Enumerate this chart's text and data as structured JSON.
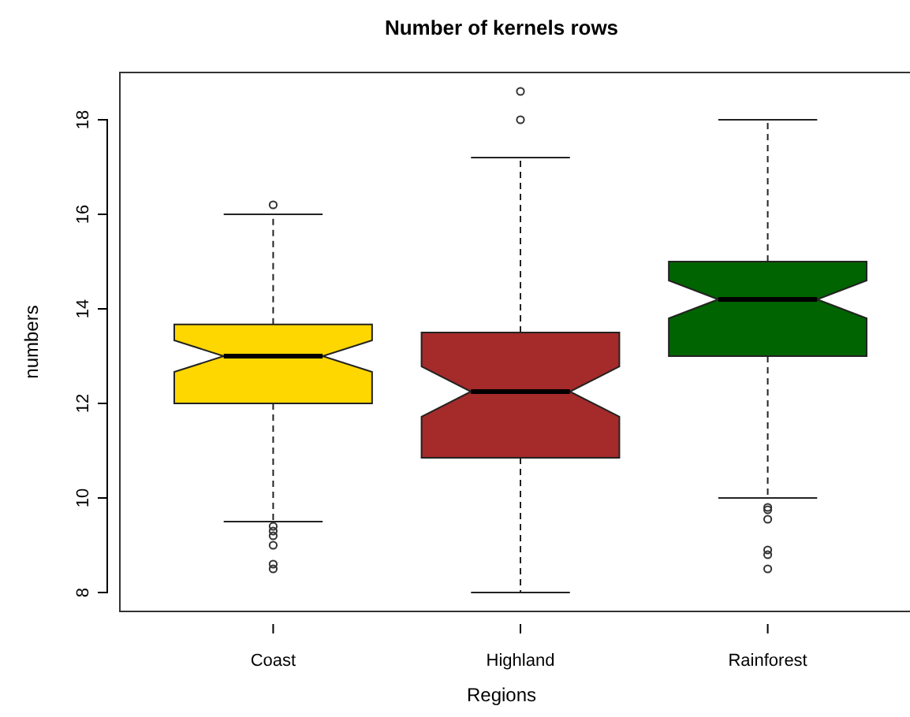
{
  "chart_data": {
    "type": "box",
    "title": "Number of kernels rows",
    "xlabel": "Regions",
    "ylabel": "numbers",
    "categories": [
      "Coast",
      "Highland",
      "Rainforest"
    ],
    "colors": [
      "#ffd700",
      "#a52a2a",
      "#006400"
    ],
    "boxes": [
      {
        "low": 9.5,
        "q1": 12,
        "median": 13,
        "q3": 13.67,
        "high": 16,
        "outliers": [
          16.2,
          9.4,
          9.3,
          9.2,
          9.0,
          8.6,
          8.5
        ]
      },
      {
        "low": 8,
        "q1": 10.85,
        "median": 12.25,
        "q3": 13.5,
        "high": 17.2,
        "outliers": [
          18.6,
          18
        ]
      },
      {
        "low": 10,
        "q1": 13,
        "median": 14.2,
        "q3": 15,
        "high": 18,
        "outliers": [
          9.8,
          9.75,
          9.55,
          8.9,
          8.8,
          8.5
        ]
      }
    ],
    "ylim": [
      7.6,
      19
    ],
    "yticks": [
      8,
      10,
      12,
      14,
      16,
      18
    ],
    "grid": false
  }
}
